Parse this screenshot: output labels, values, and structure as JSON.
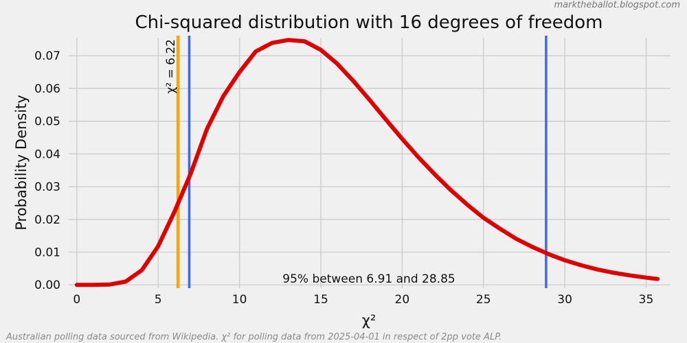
{
  "watermark": "marktheballot.blogspot.com",
  "footer": "Australian polling data sourced from Wikipedia. χ² for polling data from 2025-04-01 in respect of 2pp vote ALP.",
  "colors": {
    "background": "#f0f0f0",
    "curve": "#dd0000",
    "observed_line": "#ffa500",
    "bounds_line": "#4169e1",
    "grid": "#cbcbcb"
  },
  "chart_data": {
    "type": "line",
    "title": "Chi-squared distribution with 16 degrees of freedom",
    "xlabel": "χ²",
    "ylabel": "Probability Density",
    "degrees_of_freedom": 16,
    "xlim": [
      -0.5,
      36.5
    ],
    "ylim": [
      -0.001,
      0.0755
    ],
    "x_ticks": [
      0,
      5,
      10,
      15,
      20,
      25,
      30,
      35
    ],
    "x_tick_labels": [
      "0",
      "5",
      "10",
      "15",
      "20",
      "25",
      "30",
      "35"
    ],
    "y_ticks": [
      0.0,
      0.01,
      0.02,
      0.03,
      0.04,
      0.05,
      0.06,
      0.07
    ],
    "y_tick_labels": [
      "0.00",
      "0.01",
      "0.02",
      "0.03",
      "0.04",
      "0.05",
      "0.06",
      "0.07"
    ],
    "grid": true,
    "series": [
      {
        "x": [
          0,
          1,
          2,
          3,
          4,
          5,
          6,
          7,
          8,
          9,
          10,
          11,
          12,
          13,
          14,
          15,
          16,
          17,
          18,
          19,
          20,
          21,
          22,
          23,
          24,
          25,
          26,
          27,
          28,
          29,
          30,
          31,
          32,
          33,
          34,
          35,
          35.7
        ],
        "y": [
          0.0,
          0.0,
          0.0001,
          0.001,
          0.0045,
          0.0118,
          0.0223,
          0.034,
          0.0476,
          0.0576,
          0.065,
          0.0713,
          0.0739,
          0.0748,
          0.0744,
          0.0718,
          0.0676,
          0.0623,
          0.0565,
          0.0505,
          0.0446,
          0.039,
          0.0338,
          0.0289,
          0.0245,
          0.0205,
          0.0172,
          0.0141,
          0.0116,
          0.0094,
          0.0075,
          0.006,
          0.0047,
          0.0037,
          0.0029,
          0.0022,
          0.0018
        ]
      }
    ],
    "vlines": [
      {
        "id": "observed",
        "x": 6.22,
        "label": "χ² = 6.22"
      },
      {
        "id": "lower_bound",
        "x": 6.91
      },
      {
        "id": "upper_bound",
        "x": 28.85
      }
    ],
    "annotation": "95% between 6.91 and 28.85"
  }
}
